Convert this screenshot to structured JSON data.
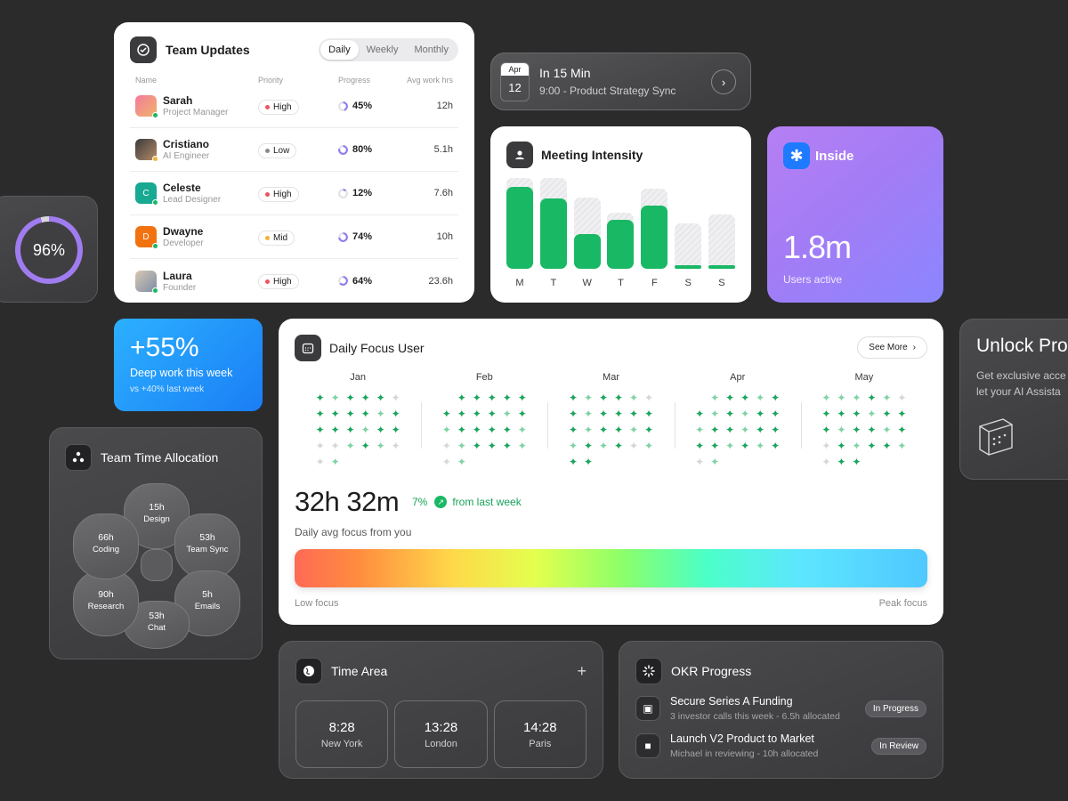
{
  "team_updates": {
    "title": "Team Updates",
    "tabs": [
      "Daily",
      "Weekly",
      "Monthly"
    ],
    "active_tab": "Daily",
    "columns": [
      "Name",
      "Priority",
      "Progress",
      "Avg work hrs"
    ],
    "rows": [
      {
        "name": "Sarah",
        "role": "Project Manager",
        "priority": "High",
        "progress": "45%",
        "hours": "12h"
      },
      {
        "name": "Cristiano",
        "role": "AI Engineer",
        "priority": "Low",
        "progress": "80%",
        "hours": "5.1h"
      },
      {
        "name": "Celeste",
        "role": "Lead Designer",
        "priority": "High",
        "progress": "12%",
        "hours": "7.6h"
      },
      {
        "name": "Dwayne",
        "role": "Developer",
        "priority": "Mid",
        "progress": "74%",
        "hours": "10h"
      },
      {
        "name": "Laura",
        "role": "Founder",
        "priority": "High",
        "progress": "64%",
        "hours": "23.6h"
      }
    ],
    "avatar_initials": [
      "C",
      "D"
    ],
    "priority_colors": {
      "High": "#f0535e",
      "Low": "#8a8a8e",
      "Mid": "#f0b23a"
    }
  },
  "ring_stat": {
    "value": "96%",
    "fraction": 0.96
  },
  "meeting": {
    "month": "Apr",
    "day": "12",
    "title": "In 15 Min",
    "subtitle": "9:00 - Product Strategy Sync"
  },
  "intensity": {
    "title": "Meeting Intensity",
    "days": [
      "M",
      "T",
      "W",
      "T",
      "F",
      "S",
      "S"
    ],
    "filled": [
      0.9,
      0.77,
      0.38,
      0.54,
      0.7,
      0.04,
      0.04
    ],
    "capacity": [
      1.0,
      1.0,
      0.78,
      0.62,
      0.88,
      0.5,
      0.6
    ]
  },
  "inside": {
    "brand": "Inside",
    "value": "1.8m",
    "label": "Users active"
  },
  "deep_work": {
    "value": "+55%",
    "label": "Deep work this week",
    "compare": "vs +40% last week"
  },
  "focus": {
    "title": "Daily Focus User",
    "see_more": "See More",
    "months": [
      "Jan",
      "Feb",
      "Mar",
      "Apr",
      "May"
    ],
    "value": "32h 32m",
    "change_pct": "7%",
    "change_text": "from last week",
    "label": "Daily avg focus from you",
    "low_label": "Low focus",
    "high_label": "Peak focus"
  },
  "unlock": {
    "title": "Unlock Pro",
    "subtitle_line1": "Get exclusive acce",
    "subtitle_line2": "let your AI Assista"
  },
  "allocation": {
    "title": "Team Time Allocation",
    "segments": [
      {
        "hours": "15h",
        "label": "Design"
      },
      {
        "hours": "53h",
        "label": "Team Sync"
      },
      {
        "hours": "5h",
        "label": "Emails"
      },
      {
        "hours": "53h",
        "label": "Chat"
      },
      {
        "hours": "90h",
        "label": "Research"
      },
      {
        "hours": "66h",
        "label": "Coding"
      }
    ]
  },
  "time_area": {
    "title": "Time Area",
    "clocks": [
      {
        "time": "8:28",
        "city": "New York"
      },
      {
        "time": "13:28",
        "city": "London"
      },
      {
        "time": "14:28",
        "city": "Paris"
      }
    ]
  },
  "okr": {
    "title": "OKR Progress",
    "items": [
      {
        "name": "Secure Series A Funding",
        "meta": "3 investor calls this week - 6.5h allocated",
        "status": "In Progress"
      },
      {
        "name": "Launch V2 Product to Market",
        "meta": "Michael in reviewing - 10h allocated",
        "status": "In Review"
      }
    ]
  }
}
